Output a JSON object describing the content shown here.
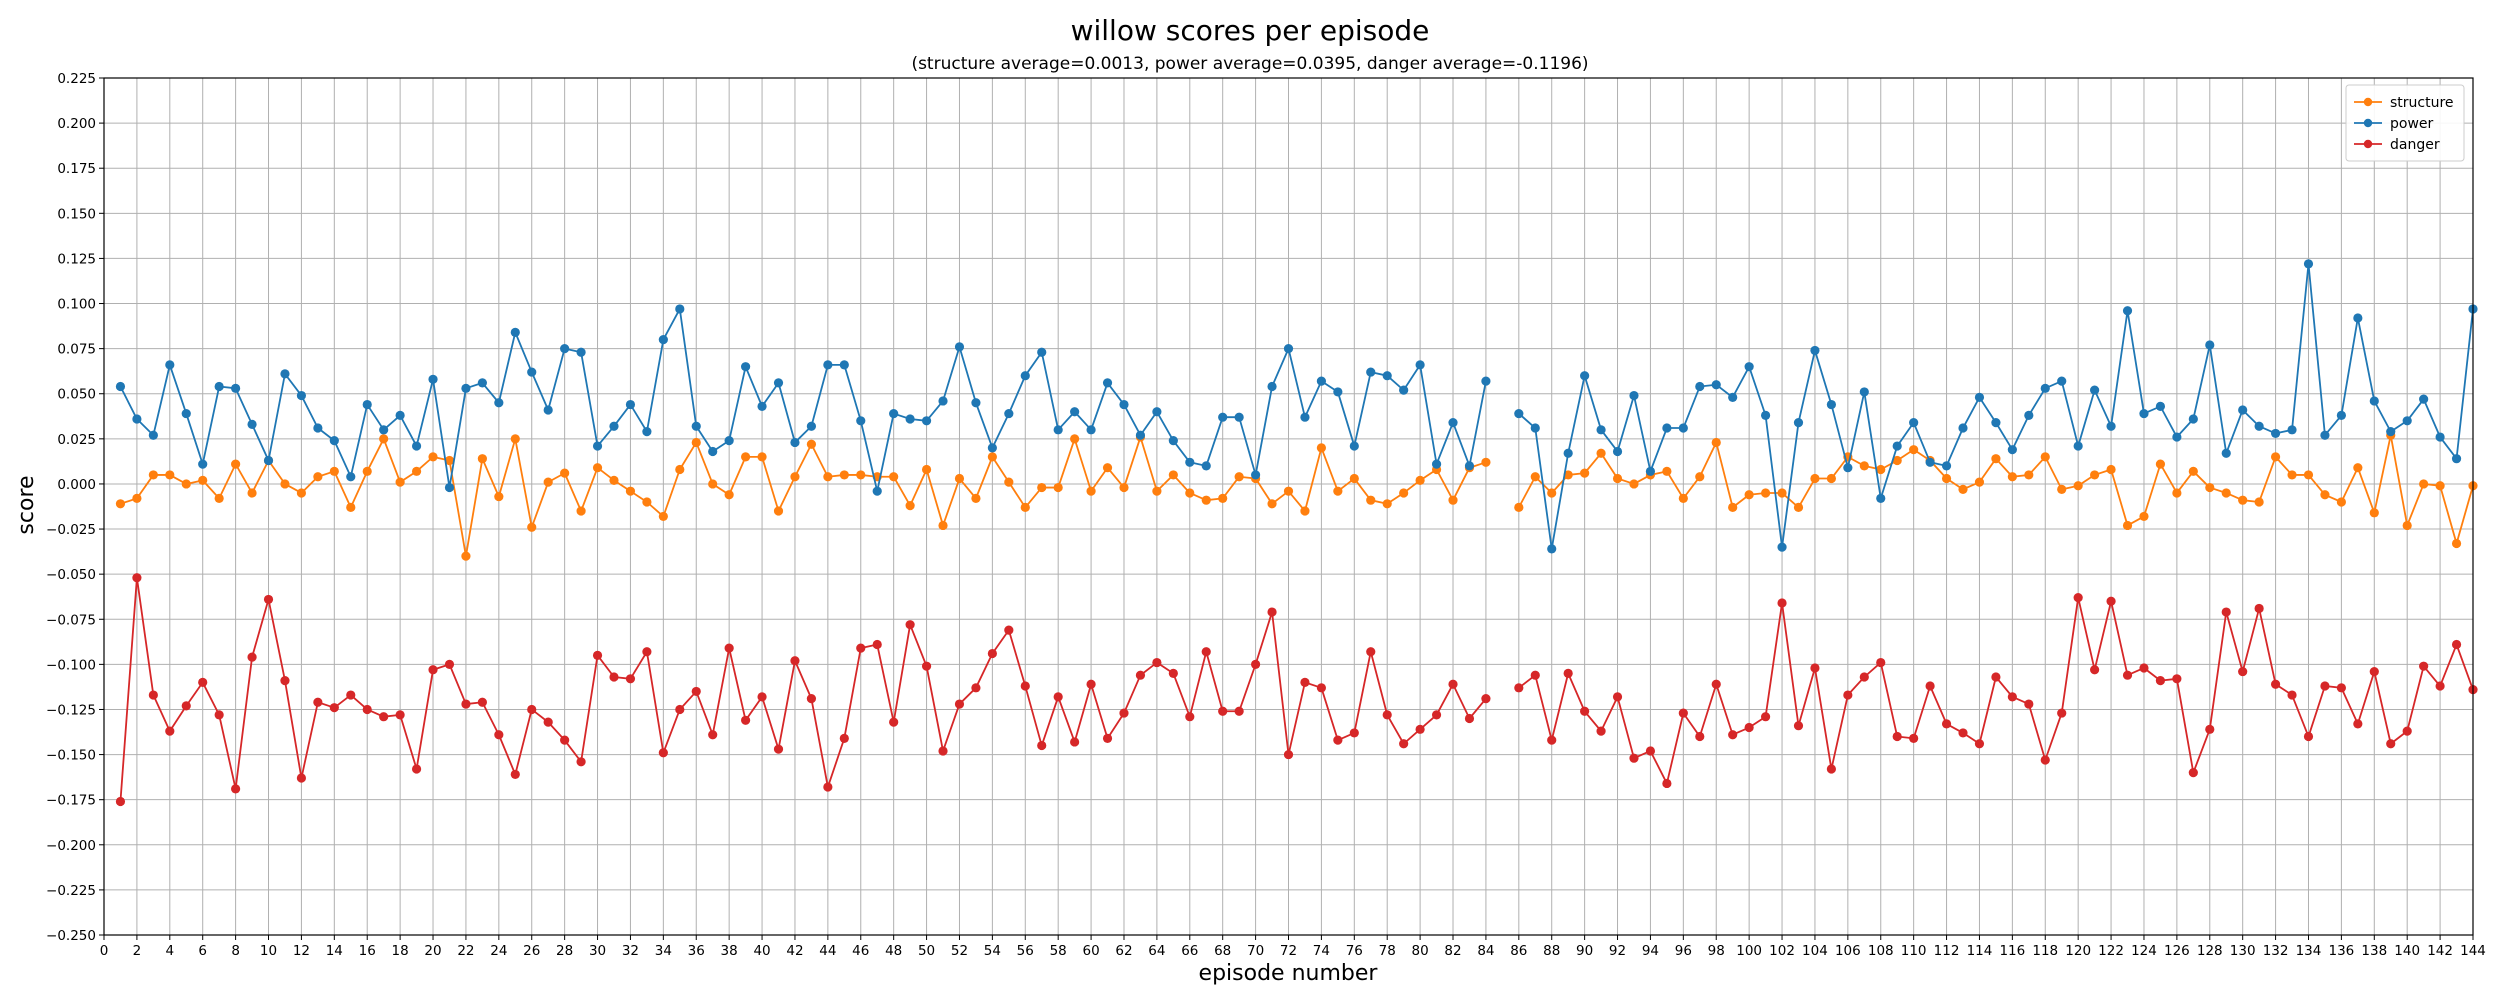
{
  "chart_data": {
    "type": "line",
    "title": "willow scores per episode",
    "subtitle": "(structure average=0.0013, power average=0.0395, danger average=-0.1196)",
    "xlabel": "episode number",
    "ylabel": "score",
    "xlim": [
      0,
      144
    ],
    "ylim": [
      -0.25,
      0.225
    ],
    "grid": true,
    "legend_position": "top-right",
    "x_ticks": [
      0,
      2,
      4,
      6,
      8,
      10,
      12,
      14,
      16,
      18,
      20,
      22,
      24,
      26,
      28,
      30,
      32,
      34,
      36,
      38,
      40,
      42,
      44,
      46,
      48,
      50,
      52,
      54,
      56,
      58,
      60,
      62,
      64,
      66,
      68,
      70,
      72,
      74,
      76,
      78,
      80,
      82,
      84,
      86,
      88,
      90,
      92,
      94,
      96,
      98,
      100,
      102,
      104,
      106,
      108,
      110,
      112,
      114,
      116,
      118,
      120,
      122,
      124,
      126,
      128,
      130,
      132,
      134,
      136,
      138,
      140,
      142,
      144
    ],
    "y_ticks": [
      0.225,
      0.2,
      0.175,
      0.15,
      0.125,
      0.1,
      0.075,
      0.05,
      0.025,
      0.0,
      -0.025,
      -0.05,
      -0.075,
      -0.1,
      -0.125,
      -0.15,
      -0.175,
      -0.2,
      -0.225,
      -0.25
    ],
    "y_tick_labels": [
      "0.225",
      "0.200",
      "0.175",
      "0.150",
      "0.125",
      "0.100",
      "0.075",
      "0.050",
      "0.025",
      "0.000",
      "−0.025",
      "−0.050",
      "−0.075",
      "−0.100",
      "−0.125",
      "−0.150",
      "−0.175",
      "−0.200",
      "−0.225",
      "−0.250"
    ],
    "series": [
      {
        "name": "structure",
        "color": "#ff7f0e",
        "x": [
          1,
          2,
          3,
          4,
          5,
          6,
          7,
          8,
          9,
          10,
          11,
          12,
          13,
          14,
          15,
          16,
          17,
          18,
          19,
          20,
          21,
          22,
          23,
          24,
          25,
          26,
          27,
          28,
          29,
          30,
          31,
          32,
          33,
          34,
          35,
          36,
          37,
          38,
          39,
          40,
          41,
          42,
          43,
          44,
          45,
          46,
          47,
          48,
          49,
          50,
          51,
          52,
          53,
          54,
          55,
          56,
          57,
          58,
          59,
          60,
          61,
          62,
          63,
          64,
          65,
          66,
          67,
          68,
          69,
          70,
          71,
          72,
          73,
          74,
          75,
          76,
          77,
          78,
          79,
          80,
          81,
          82,
          83,
          84,
          null,
          86,
          87,
          88,
          89,
          90,
          91,
          92,
          93,
          94,
          95,
          96,
          97,
          98,
          99,
          100,
          101,
          102,
          103,
          104,
          105,
          106,
          107,
          108,
          109,
          110,
          111,
          112,
          113,
          114,
          115,
          116,
          117,
          118,
          119,
          120,
          121,
          122,
          123,
          124,
          125,
          126,
          127,
          128,
          129,
          130,
          131,
          132,
          133,
          134,
          135,
          136,
          137,
          138,
          139,
          140,
          141,
          142,
          143,
          144
        ],
        "values": [
          -0.011,
          -0.008,
          0.005,
          0.005,
          0.0,
          0.002,
          -0.008,
          0.011,
          -0.005,
          0.013,
          0.0,
          -0.005,
          0.004,
          0.007,
          -0.013,
          0.007,
          0.025,
          0.001,
          0.007,
          0.015,
          0.013,
          -0.04,
          0.014,
          -0.007,
          0.025,
          -0.024,
          0.001,
          0.006,
          -0.015,
          0.009,
          0.002,
          -0.004,
          -0.01,
          -0.018,
          0.008,
          0.023,
          0.0,
          -0.006,
          0.015,
          0.015,
          -0.015,
          0.004,
          0.022,
          0.004,
          0.005,
          0.005,
          0.004,
          0.004,
          -0.012,
          0.008,
          -0.023,
          0.003,
          -0.008,
          0.015,
          0.001,
          -0.013,
          -0.002,
          -0.002,
          0.025,
          -0.004,
          0.009,
          -0.002,
          0.026,
          -0.004,
          0.005,
          -0.005,
          -0.009,
          -0.008,
          0.004,
          0.003,
          -0.011,
          -0.004,
          -0.015,
          0.02,
          -0.004,
          0.003,
          -0.009,
          -0.011,
          -0.005,
          0.002,
          0.008,
          -0.009,
          0.009,
          0.012,
          null,
          -0.013,
          0.004,
          -0.005,
          0.005,
          0.006,
          0.017,
          0.003,
          0.0,
          0.005,
          0.007,
          -0.008,
          0.004,
          0.023,
          -0.013,
          -0.006,
          -0.005,
          -0.005,
          -0.013,
          0.003,
          0.003,
          0.015,
          0.01,
          0.008,
          0.013,
          0.019,
          0.013,
          0.003,
          -0.003,
          0.001,
          0.014,
          0.004,
          0.005,
          0.015,
          -0.003,
          -0.001,
          0.005,
          0.008,
          -0.023,
          -0.018,
          0.011,
          -0.005,
          0.007,
          -0.002,
          -0.005,
          -0.009,
          -0.01,
          0.015,
          0.005,
          0.005,
          -0.006,
          -0.01,
          0.009,
          -0.016,
          0.027,
          -0.023,
          0.0,
          -0.001,
          -0.033,
          -0.001
        ]
      },
      {
        "name": "power",
        "color": "#1f77b4",
        "x": [
          1,
          2,
          3,
          4,
          5,
          6,
          7,
          8,
          9,
          10,
          11,
          12,
          13,
          14,
          15,
          16,
          17,
          18,
          19,
          20,
          21,
          22,
          23,
          24,
          25,
          26,
          27,
          28,
          29,
          30,
          31,
          32,
          33,
          34,
          35,
          36,
          37,
          38,
          39,
          40,
          41,
          42,
          43,
          44,
          45,
          46,
          47,
          48,
          49,
          50,
          51,
          52,
          53,
          54,
          55,
          56,
          57,
          58,
          59,
          60,
          61,
          62,
          63,
          64,
          65,
          66,
          67,
          68,
          69,
          70,
          71,
          72,
          73,
          74,
          75,
          76,
          77,
          78,
          79,
          80,
          81,
          82,
          83,
          84,
          null,
          86,
          87,
          88,
          89,
          90,
          91,
          92,
          93,
          94,
          95,
          96,
          97,
          98,
          99,
          100,
          101,
          102,
          103,
          104,
          105,
          106,
          107,
          108,
          109,
          110,
          111,
          112,
          113,
          114,
          115,
          116,
          117,
          118,
          119,
          120,
          121,
          122,
          123,
          124,
          125,
          126,
          127,
          128,
          129,
          130,
          131,
          132,
          133,
          134,
          135,
          136,
          137,
          138,
          139,
          140,
          141,
          142,
          143,
          144
        ],
        "values": [
          0.054,
          0.036,
          0.027,
          0.066,
          0.039,
          0.011,
          0.054,
          0.053,
          0.033,
          0.013,
          0.061,
          0.049,
          0.031,
          0.024,
          0.004,
          0.044,
          0.03,
          0.038,
          0.021,
          0.058,
          -0.002,
          0.053,
          0.056,
          0.045,
          0.084,
          0.062,
          0.041,
          0.075,
          0.073,
          0.021,
          0.032,
          0.044,
          0.029,
          0.08,
          0.097,
          0.032,
          0.018,
          0.024,
          0.065,
          0.043,
          0.056,
          0.023,
          0.032,
          0.066,
          0.066,
          0.035,
          -0.004,
          0.039,
          0.036,
          0.035,
          0.046,
          0.076,
          0.045,
          0.02,
          0.039,
          0.06,
          0.073,
          0.03,
          0.04,
          0.03,
          0.056,
          0.044,
          0.027,
          0.04,
          0.024,
          0.012,
          0.01,
          0.037,
          0.037,
          0.005,
          0.054,
          0.075,
          0.037,
          0.057,
          0.051,
          0.021,
          0.062,
          0.06,
          0.052,
          0.066,
          0.011,
          0.034,
          0.01,
          0.057,
          null,
          0.039,
          0.031,
          -0.036,
          0.017,
          0.06,
          0.03,
          0.018,
          0.049,
          0.007,
          0.031,
          0.031,
          0.054,
          0.055,
          0.048,
          0.065,
          0.038,
          -0.035,
          0.034,
          0.074,
          0.044,
          0.009,
          0.051,
          -0.008,
          0.021,
          0.034,
          0.012,
          0.01,
          0.031,
          0.048,
          0.034,
          0.019,
          0.038,
          0.053,
          0.057,
          0.021,
          0.052,
          0.032,
          0.096,
          0.039,
          0.043,
          0.026,
          0.036,
          0.077,
          0.017,
          0.041,
          0.032,
          0.028,
          0.03,
          0.122,
          0.027,
          0.038,
          0.092,
          0.046,
          0.029,
          0.035,
          0.047,
          0.026,
          0.014,
          0.097
        ]
      },
      {
        "name": "danger",
        "color": "#d62728",
        "x": [
          1,
          2,
          3,
          4,
          5,
          6,
          7,
          8,
          9,
          10,
          11,
          12,
          13,
          14,
          15,
          16,
          17,
          18,
          19,
          20,
          21,
          22,
          23,
          24,
          25,
          26,
          27,
          28,
          29,
          30,
          31,
          32,
          33,
          34,
          35,
          36,
          37,
          38,
          39,
          40,
          41,
          42,
          43,
          44,
          45,
          46,
          47,
          48,
          49,
          50,
          51,
          52,
          53,
          54,
          55,
          56,
          57,
          58,
          59,
          60,
          61,
          62,
          63,
          64,
          65,
          66,
          67,
          68,
          69,
          70,
          71,
          72,
          73,
          74,
          75,
          76,
          77,
          78,
          79,
          80,
          81,
          82,
          83,
          84,
          null,
          86,
          87,
          88,
          89,
          90,
          91,
          92,
          93,
          94,
          95,
          96,
          97,
          98,
          99,
          100,
          101,
          102,
          103,
          104,
          105,
          106,
          107,
          108,
          109,
          110,
          111,
          112,
          113,
          114,
          115,
          116,
          117,
          118,
          119,
          120,
          121,
          122,
          123,
          124,
          125,
          126,
          127,
          128,
          129,
          130,
          131,
          132,
          133,
          134,
          135,
          136,
          137,
          138,
          139,
          140,
          141,
          142,
          143,
          144
        ],
        "values": [
          -0.176,
          -0.052,
          -0.117,
          -0.137,
          -0.123,
          -0.11,
          -0.128,
          -0.169,
          -0.096,
          -0.064,
          -0.109,
          -0.163,
          -0.121,
          -0.124,
          -0.117,
          -0.125,
          -0.129,
          -0.128,
          -0.158,
          -0.103,
          -0.1,
          -0.122,
          -0.121,
          -0.139,
          -0.161,
          -0.125,
          -0.132,
          -0.142,
          -0.154,
          -0.095,
          -0.107,
          -0.108,
          -0.093,
          -0.149,
          -0.125,
          -0.115,
          -0.139,
          -0.091,
          -0.131,
          -0.118,
          -0.147,
          -0.098,
          -0.119,
          -0.168,
          -0.141,
          -0.091,
          -0.089,
          -0.132,
          -0.078,
          -0.101,
          -0.148,
          -0.122,
          -0.113,
          -0.094,
          -0.081,
          -0.112,
          -0.145,
          -0.118,
          -0.143,
          -0.111,
          -0.141,
          -0.127,
          -0.106,
          -0.099,
          -0.105,
          -0.129,
          -0.093,
          -0.126,
          -0.126,
          -0.1,
          -0.071,
          -0.15,
          -0.11,
          -0.113,
          -0.142,
          -0.138,
          -0.093,
          -0.128,
          -0.144,
          -0.136,
          -0.128,
          -0.111,
          -0.13,
          -0.119,
          null,
          -0.113,
          -0.106,
          -0.142,
          -0.105,
          -0.126,
          -0.137,
          -0.118,
          -0.152,
          -0.148,
          -0.166,
          -0.127,
          -0.14,
          -0.111,
          -0.139,
          -0.135,
          -0.129,
          -0.066,
          -0.134,
          -0.102,
          -0.158,
          -0.117,
          -0.107,
          -0.099,
          -0.14,
          -0.141,
          -0.112,
          -0.133,
          -0.138,
          -0.144,
          -0.107,
          -0.118,
          -0.122,
          -0.153,
          -0.127,
          -0.063,
          -0.103,
          -0.065,
          -0.106,
          -0.102,
          -0.109,
          -0.108,
          -0.16,
          -0.136,
          -0.071,
          -0.104,
          -0.069,
          -0.111,
          -0.117,
          -0.14,
          -0.112,
          -0.113,
          -0.133,
          -0.104,
          -0.144,
          -0.137,
          -0.101,
          -0.112,
          -0.089,
          -0.114
        ]
      }
    ]
  }
}
